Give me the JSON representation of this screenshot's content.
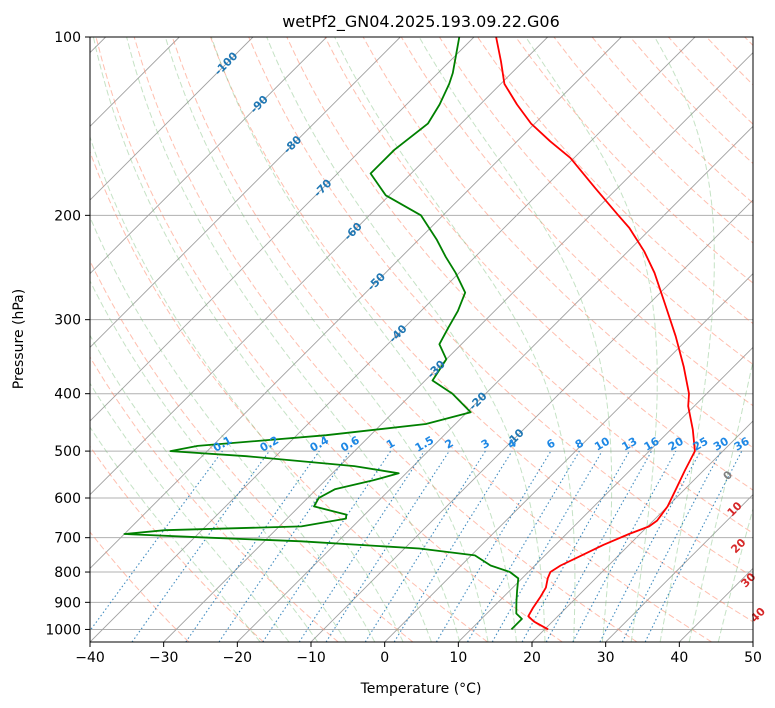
{
  "chart_data": {
    "type": "line",
    "title": "wetPf2_GN04.2025.193.09.22.G06",
    "xlabel": "Temperature (°C)",
    "ylabel": "Pressure (hPa)",
    "xlim": [
      -40,
      50
    ],
    "ylim": [
      1050,
      100
    ],
    "y_scale": "log",
    "grid": true,
    "x_ticks": [
      -40,
      -30,
      -20,
      -10,
      0,
      10,
      20,
      30,
      40,
      50
    ],
    "y_ticks": [
      100,
      200,
      300,
      400,
      500,
      600,
      700,
      800,
      900,
      1000
    ],
    "skew_degrees_per_log_p": 45,
    "series": [
      {
        "role": "temperature",
        "color": "#ff0000",
        "points": [
          {
            "p": 1000,
            "t": 20.5
          },
          {
            "p": 970,
            "t": 17.5
          },
          {
            "p": 950,
            "t": 16.0
          },
          {
            "p": 920,
            "t": 15.5
          },
          {
            "p": 880,
            "t": 15.0
          },
          {
            "p": 850,
            "t": 14.5
          },
          {
            "p": 820,
            "t": 13.5
          },
          {
            "p": 800,
            "t": 13.0
          },
          {
            "p": 780,
            "t": 13.5
          },
          {
            "p": 760,
            "t": 14.5
          },
          {
            "p": 720,
            "t": 16.5
          },
          {
            "p": 690,
            "t": 18.5
          },
          {
            "p": 670,
            "t": 20.2
          },
          {
            "p": 655,
            "t": 20.5
          },
          {
            "p": 620,
            "t": 20.0
          },
          {
            "p": 580,
            "t": 18.8
          },
          {
            "p": 540,
            "t": 17.5
          },
          {
            "p": 500,
            "t": 16.2
          },
          {
            "p": 460,
            "t": 13.0
          },
          {
            "p": 420,
            "t": 9.2
          },
          {
            "p": 400,
            "t": 7.6
          },
          {
            "p": 360,
            "t": 3.2
          },
          {
            "p": 320,
            "t": -2.0
          },
          {
            "p": 280,
            "t": -8.2
          },
          {
            "p": 250,
            "t": -13.5
          },
          {
            "p": 230,
            "t": -17.8
          },
          {
            "p": 210,
            "t": -23.0
          },
          {
            "p": 200,
            "t": -26.2
          },
          {
            "p": 180,
            "t": -33.0
          },
          {
            "p": 160,
            "t": -40.5
          },
          {
            "p": 150,
            "t": -45.5
          },
          {
            "p": 140,
            "t": -50.5
          },
          {
            "p": 130,
            "t": -55.0
          },
          {
            "p": 120,
            "t": -59.5
          },
          {
            "p": 110,
            "t": -63.0
          },
          {
            "p": 100,
            "t": -67.0
          }
        ]
      },
      {
        "role": "dewpoint",
        "color": "#008000",
        "points": [
          {
            "p": 1000,
            "t": 15.5
          },
          {
            "p": 960,
            "t": 15.5
          },
          {
            "p": 940,
            "t": 14.0
          },
          {
            "p": 900,
            "t": 12.5
          },
          {
            "p": 860,
            "t": 11.0
          },
          {
            "p": 820,
            "t": 9.5
          },
          {
            "p": 800,
            "t": 7.5
          },
          {
            "p": 780,
            "t": 4.0
          },
          {
            "p": 750,
            "t": 0.5
          },
          {
            "p": 730,
            "t": -8.0
          },
          {
            "p": 710,
            "t": -25.0
          },
          {
            "p": 700,
            "t": -38.0
          },
          {
            "p": 690,
            "t": -50.0
          },
          {
            "p": 680,
            "t": -45.0
          },
          {
            "p": 670,
            "t": -27.0
          },
          {
            "p": 650,
            "t": -22.0
          },
          {
            "p": 640,
            "t": -22.5
          },
          {
            "p": 620,
            "t": -28.0
          },
          {
            "p": 600,
            "t": -28.5
          },
          {
            "p": 580,
            "t": -27.5
          },
          {
            "p": 560,
            "t": -23.5
          },
          {
            "p": 545,
            "t": -21.0
          },
          {
            "p": 530,
            "t": -28.0
          },
          {
            "p": 510,
            "t": -44.0
          },
          {
            "p": 500,
            "t": -55.0
          },
          {
            "p": 490,
            "t": -52.0
          },
          {
            "p": 470,
            "t": -36.0
          },
          {
            "p": 450,
            "t": -24.0
          },
          {
            "p": 430,
            "t": -19.5
          },
          {
            "p": 400,
            "t": -24.5
          },
          {
            "p": 380,
            "t": -29.0
          },
          {
            "p": 350,
            "t": -30.0
          },
          {
            "p": 330,
            "t": -33.0
          },
          {
            "p": 310,
            "t": -34.0
          },
          {
            "p": 290,
            "t": -35.0
          },
          {
            "p": 270,
            "t": -36.5
          },
          {
            "p": 250,
            "t": -40.5
          },
          {
            "p": 235,
            "t": -44.0
          },
          {
            "p": 220,
            "t": -47.5
          },
          {
            "p": 200,
            "t": -53.0
          },
          {
            "p": 185,
            "t": -60.5
          },
          {
            "p": 170,
            "t": -65.5
          },
          {
            "p": 155,
            "t": -65.5
          },
          {
            "p": 140,
            "t": -64.5
          },
          {
            "p": 130,
            "t": -65.5
          },
          {
            "p": 120,
            "t": -67.0
          },
          {
            "p": 115,
            "t": -68.0
          },
          {
            "p": 100,
            "t": -72.0
          }
        ]
      }
    ],
    "isotherm_labels": [
      {
        "text": "-100",
        "t": -100,
        "p": 111
      },
      {
        "text": "-90",
        "t": -90,
        "p": 130
      },
      {
        "text": "-80",
        "t": -80,
        "p": 152
      },
      {
        "text": "-70",
        "t": -70,
        "p": 180
      },
      {
        "text": "-60",
        "t": -60,
        "p": 213
      },
      {
        "text": "-50",
        "t": -50,
        "p": 259
      },
      {
        "text": "-40",
        "t": -40,
        "p": 317
      },
      {
        "text": "-30",
        "t": -30,
        "p": 364
      },
      {
        "text": "-20",
        "t": -20,
        "p": 412
      },
      {
        "text": "-10",
        "t": -10,
        "p": 475
      }
    ],
    "mixing_ratio_labels": [
      "0.1",
      "0.2",
      "0.4",
      "0.6",
      "1",
      "1.5",
      "2",
      "3",
      "4",
      "6",
      "8",
      "10",
      "13",
      "16",
      "20",
      "25",
      "30",
      "36"
    ],
    "mixing_ratio_values": [
      0.1,
      0.2,
      0.4,
      0.6,
      1,
      1.5,
      2,
      3,
      4,
      6,
      8,
      10,
      13,
      16,
      20,
      25,
      30,
      36
    ],
    "moist_adiabat_labels": [
      {
        "text": "0",
        "t": 24,
        "p": 550,
        "color": "#808080"
      },
      {
        "text": "10",
        "t": 29.5,
        "p": 627,
        "color": "#d62728"
      },
      {
        "text": "20",
        "t": 35,
        "p": 723,
        "color": "#d62728"
      },
      {
        "text": "30",
        "t": 41,
        "p": 826,
        "color": "#d62728"
      },
      {
        "text": "40",
        "t": 47,
        "p": 945,
        "color": "#d62728"
      }
    ],
    "colors": {
      "temperature": "#ff0000",
      "dewpoint": "#008000",
      "isotherm": "#a0a0a0",
      "isotherm_label": "#1f77b4",
      "dry_adiabat": "#ff8060",
      "moist_adiabat": "#7fbf7f",
      "mixing_ratio": "#1f77b4",
      "mixing_ratio_label": "#1e88e5",
      "isobar": "#b0b0b0"
    }
  }
}
